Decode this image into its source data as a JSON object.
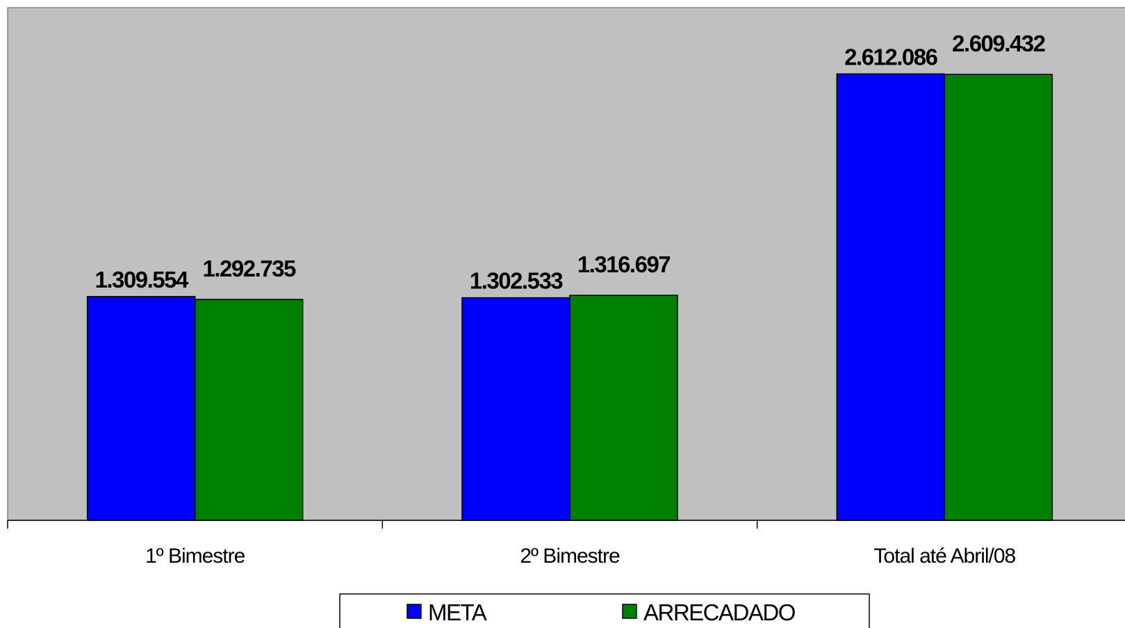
{
  "chart_data": {
    "type": "bar",
    "categories": [
      "1º Bimestre",
      "2º Bimestre",
      "Total até Abril/08"
    ],
    "series": [
      {
        "name": "META",
        "values": [
          1309554,
          1302533,
          2612086
        ],
        "labels": [
          "1.309.554",
          "1.302.533",
          "2.612.086"
        ],
        "color": "#0000ff"
      },
      {
        "name": "ARRECADADO",
        "values": [
          1292735,
          1316697,
          2609432
        ],
        "labels": [
          "1.292.735",
          "1.316.697",
          "2.609.432"
        ],
        "color": "#008000"
      }
    ],
    "title": "",
    "xlabel": "",
    "ylabel": "",
    "ylim": [
      0,
      3000000
    ],
    "grid": false,
    "legend": "bottom",
    "plot_background": "#c0c0c0"
  }
}
